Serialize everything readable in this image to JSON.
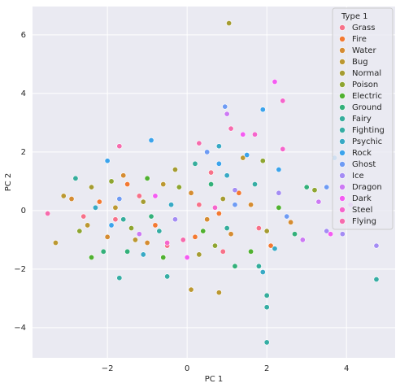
{
  "chart_data": {
    "type": "scatter",
    "x_label": "PC 1",
    "y_label": "PC 2",
    "legend_title": "Type 1",
    "legend": "upper right",
    "grid": true,
    "xlim": [
      -3.88,
      5.22
    ],
    "ylim": [
      -5.03,
      6.97
    ],
    "xticks": [
      {
        "value": -2,
        "label": "−2"
      },
      0,
      2,
      4
    ],
    "yticks": [
      {
        "value": -4,
        "label": "−4"
      },
      {
        "value": -2,
        "label": "−2"
      },
      0,
      2,
      4,
      6
    ],
    "series": [
      {
        "name": "Grass",
        "color": "#f77189",
        "x": [
          -1.8,
          -1.2,
          -0.5,
          0.3,
          0.9,
          1.8,
          -2.6,
          0.6
        ],
        "y": [
          -0.3,
          0.5,
          -1.2,
          0.2,
          -1.4,
          -0.6,
          -0.2,
          1.3
        ]
      },
      {
        "name": "Fire",
        "color": "#f37932",
        "x": [
          -1.5,
          -0.8,
          0.2,
          1.3,
          2.1,
          -2.2,
          0.8
        ],
        "y": [
          0.9,
          -0.5,
          -0.9,
          0.6,
          -1.2,
          0.3,
          -0.1
        ]
      },
      {
        "name": "Water",
        "color": "#d58c32",
        "x": [
          -2.9,
          -1.0,
          0.1,
          1.1,
          -1.6,
          0.5,
          -2.0,
          1.6,
          2.6
        ],
        "y": [
          0.4,
          -1.1,
          0.6,
          -0.8,
          1.2,
          -0.3,
          -0.9,
          0.2,
          -0.4
        ]
      },
      {
        "name": "Bug",
        "color": "#bb9832",
        "x": [
          -3.1,
          -2.5,
          -1.8,
          -1.3,
          -0.6,
          0.1,
          0.8,
          1.4,
          -3.3
        ],
        "y": [
          0.5,
          -0.5,
          0.1,
          -1.0,
          0.9,
          -2.7,
          -2.8,
          1.8,
          -1.1
        ]
      },
      {
        "name": "Normal",
        "color": "#a59c32",
        "x": [
          1.05,
          -2.4,
          -1.1,
          0.3,
          0.9,
          2.0,
          -0.3
        ],
        "y": [
          6.4,
          0.8,
          0.3,
          -1.5,
          0.4,
          -0.7,
          1.4
        ]
      },
      {
        "name": "Poison",
        "color": "#8ea531",
        "x": [
          -2.7,
          -1.4,
          -0.2,
          0.7,
          1.9,
          3.2,
          -1.9
        ],
        "y": [
          -0.7,
          -0.6,
          0.8,
          -1.2,
          1.7,
          0.7,
          1.0
        ]
      },
      {
        "name": "Electric",
        "color": "#50b131",
        "x": [
          -2.4,
          -1.0,
          0.4,
          1.6,
          2.3,
          -0.6
        ],
        "y": [
          -1.6,
          1.1,
          -0.7,
          -1.4,
          0.1,
          -1.6
        ]
      },
      {
        "name": "Ground",
        "color": "#33b07a",
        "x": [
          -2.1,
          -0.9,
          0.6,
          1.2,
          2.7,
          3.0,
          -1.5
        ],
        "y": [
          -1.4,
          -0.2,
          0.9,
          -1.9,
          -0.8,
          0.8,
          -1.4
        ]
      },
      {
        "name": "Fairy",
        "color": "#35ad9c",
        "x": [
          -2.8,
          -1.6,
          0.2,
          1.0,
          2.0,
          1.8
        ],
        "y": [
          1.1,
          -0.3,
          1.6,
          -0.6,
          -2.9,
          -1.9
        ]
      },
      {
        "name": "Fighting",
        "color": "#36ada4",
        "x": [
          4.75,
          2.0,
          2.0,
          -1.7,
          -0.5,
          1.7,
          -0.7
        ],
        "y": [
          -2.35,
          -4.5,
          -3.3,
          -2.3,
          -2.25,
          0.9,
          -0.7
        ]
      },
      {
        "name": "Psychic",
        "color": "#38a9c5",
        "x": [
          -2.3,
          -0.4,
          0.8,
          1.0,
          1.9,
          2.2,
          -1.1
        ],
        "y": [
          0.1,
          0.2,
          2.2,
          1.2,
          -2.1,
          -1.3,
          -1.5
        ]
      },
      {
        "name": "Rock",
        "color": "#3ba3ec",
        "x": [
          -2.0,
          -0.9,
          0.8,
          1.5,
          1.9,
          2.3,
          3.7,
          -1.9
        ],
        "y": [
          1.7,
          2.4,
          1.6,
          1.9,
          3.45,
          1.4,
          1.8,
          -0.5
        ]
      },
      {
        "name": "Ghost",
        "color": "#6e9bf4",
        "x": [
          0.95,
          -1.7,
          0.5,
          1.2,
          2.5,
          3.5
        ],
        "y": [
          3.55,
          0.4,
          2.0,
          0.2,
          -0.2,
          0.8
        ]
      },
      {
        "name": "Ice",
        "color": "#a48cf4",
        "x": [
          4.75,
          3.5,
          3.9,
          1.2,
          -0.3,
          2.3
        ],
        "y": [
          -1.2,
          -0.7,
          -0.8,
          0.7,
          -0.3,
          0.6
        ]
      },
      {
        "name": "Dragon",
        "color": "#cc7af4",
        "x": [
          3.3,
          4.1,
          1.0,
          2.9,
          -1.2
        ],
        "y": [
          0.3,
          0.2,
          3.3,
          -1.0,
          -0.8
        ]
      },
      {
        "name": "Dark",
        "color": "#f45cf2",
        "x": [
          2.2,
          1.4,
          0.0,
          -0.8,
          3.6
        ],
        "y": [
          4.4,
          2.6,
          -1.6,
          0.5,
          -0.8
        ]
      },
      {
        "name": "Steel",
        "color": "#f565cc",
        "x": [
          2.4,
          1.7,
          -0.5,
          0.7,
          2.4
        ],
        "y": [
          3.75,
          2.6,
          -1.1,
          0.1,
          2.1
        ]
      },
      {
        "name": "Flying",
        "color": "#f66bad",
        "x": [
          -3.5,
          -1.7,
          0.3,
          1.1,
          -0.1
        ],
        "y": [
          -0.1,
          2.2,
          2.3,
          2.8,
          -1.0
        ]
      }
    ]
  }
}
